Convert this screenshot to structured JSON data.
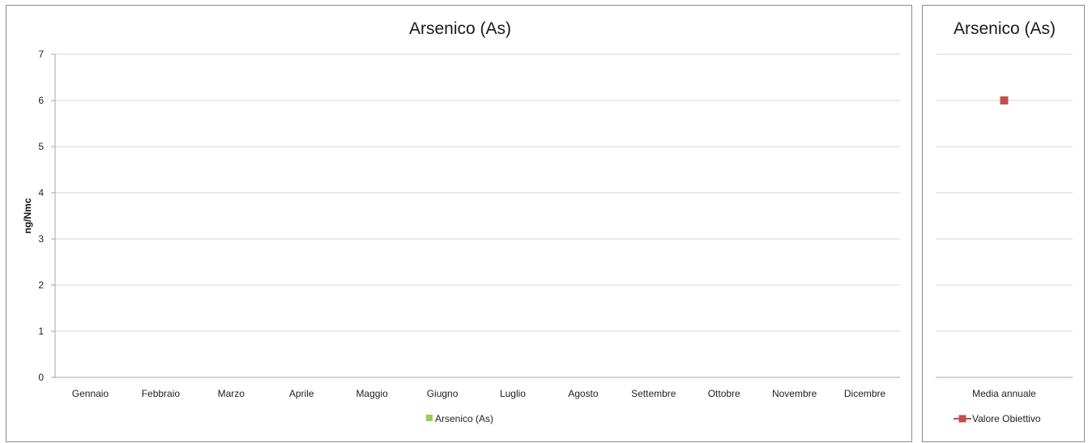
{
  "chart_data": [
    {
      "type": "bar",
      "title": "Arsenico (As)",
      "ylabel": "ng/Nmc",
      "xlabel": "",
      "ylim": [
        0,
        7
      ],
      "yticks": [
        "0",
        "1",
        "2",
        "3",
        "4",
        "5",
        "6",
        "7"
      ],
      "grid": true,
      "categories": [
        "Gennaio",
        "Febbraio",
        "Marzo",
        "Aprile",
        "Maggio",
        "Giugno",
        "Luglio",
        "Agosto",
        "Settembre",
        "Ottobre",
        "Novembre",
        "Dicembre"
      ],
      "series": [
        {
          "name": "Arsenico (As)",
          "color": "#92d050",
          "values": [
            null,
            null,
            null,
            null,
            null,
            null,
            null,
            null,
            null,
            null,
            null,
            null
          ]
        }
      ],
      "legend": "bottom"
    },
    {
      "type": "line",
      "title": "Arsenico (As)",
      "ylim": [
        0,
        7
      ],
      "grid": true,
      "categories": [
        "Media annuale"
      ],
      "series": [
        {
          "name": "Valore Obiettivo",
          "color": "#c0504d",
          "marker": "square",
          "values": [
            6
          ]
        }
      ],
      "legend": "bottom"
    }
  ]
}
